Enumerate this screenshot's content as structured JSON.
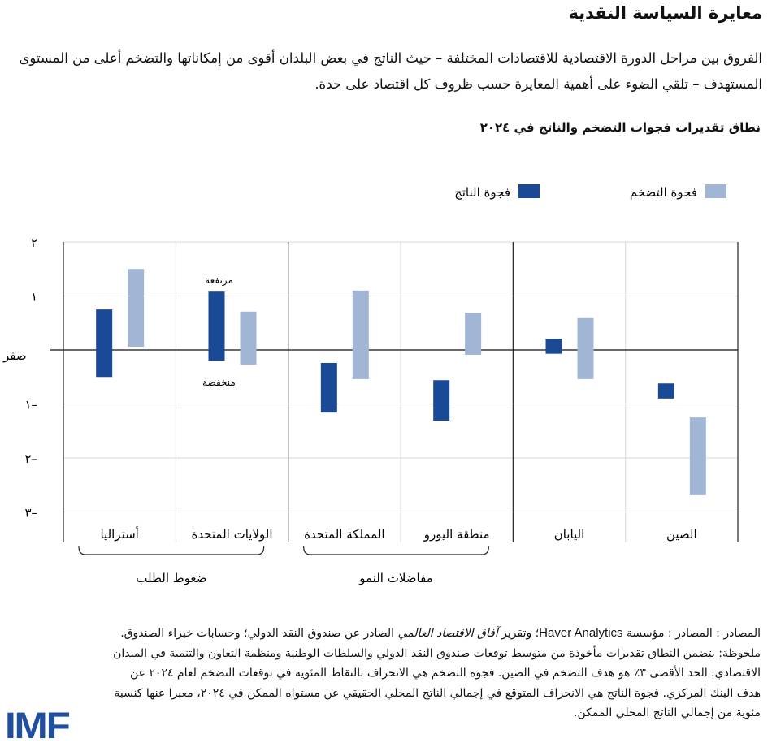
{
  "header": {
    "title": "معايرة السياسة النقدية",
    "subtitle": "الفروق بين مراحل الدورة الاقتصادية للاقتصادات المختلفة – حيث الناتج في بعض البلدان أقوى من إمكاناتها والتضخم أعلى من المستوى المستهدف – تلقي الضوء على أهمية المعايرة حسب ظروف كل اقتصاد على حدة."
  },
  "chart_data": {
    "type": "range-bar",
    "title": "نطاق تقديرات فجوات التضخم والناتج في ٢٠٢٤",
    "ylim": [
      -3,
      2
    ],
    "yticks": [
      {
        "value": 2,
        "label": "٢"
      },
      {
        "value": 1,
        "label": "١"
      },
      {
        "value": 0,
        "label": "صفر"
      },
      {
        "value": -1,
        "label": "١–"
      },
      {
        "value": -2,
        "label": "٢–"
      },
      {
        "value": -3,
        "label": "٣–"
      }
    ],
    "grid": true,
    "legend_position": "top",
    "categories": [
      "أستراليا",
      "الولايات المتحدة",
      "المملكة المتحدة",
      "منطقة اليورو",
      "اليابان",
      "الصين"
    ],
    "series": [
      {
        "name": "فجوة الناتج",
        "color": "#1a4a96",
        "ranges": [
          [
            -0.5,
            0.75
          ],
          [
            -0.2,
            1.08
          ],
          [
            -1.16,
            -0.24
          ],
          [
            -1.31,
            -0.56
          ],
          [
            -0.07,
            0.21
          ],
          [
            -0.9,
            -0.62
          ]
        ]
      },
      {
        "name": "فجوة التضخم",
        "color": "#a1b6d4",
        "ranges": [
          [
            0.06,
            1.5
          ],
          [
            -0.27,
            0.71
          ],
          [
            -0.54,
            1.1
          ],
          [
            -0.09,
            0.69
          ],
          [
            -0.54,
            0.59
          ],
          [
            -2.69,
            -1.25
          ]
        ]
      }
    ],
    "annotations": {
      "high": "مرتفعة",
      "low": "منخفضة"
    },
    "groups": [
      {
        "label": "ضغوط الطلب",
        "categories": [
          0,
          1
        ]
      },
      {
        "label": "مفاضلات النمو",
        "categories": [
          2,
          3
        ]
      }
    ]
  },
  "footer": {
    "sources_prefix": "المصادر : المصادر : مؤسسة ",
    "sources_haver": "Haver Analytics",
    "sources_mid": "؛ وتقرير ",
    "sources_weo": "آفاق الاقتصاد العالمي",
    "sources_suffix": " الصادر عن صندوق النقد الدولي؛ وحسابات خبراء الصندوق.",
    "note": "ملحوظة: يتضمن النطاق تقديرات مأخوذة من متوسط توقعات صندوق النقد الدولي والسلطات الوطنية ومنظمة التعاون والتنمية في الميدان الاقتصادي. الحد الأقصى ٣٪ هو هدف التضخم في الصين. فجوة التضخم هي الانحراف بالنقاط المئوية في توقعات التضخم لعام ٢٠٢٤ عن هدف البنك المركزي. فجوة الناتج هي الانحراف المتوقع في إجمالي الناتج المحلي الحقيقي عن مستواه الممكن في ٢٠٢٤، معبرا عنها كنسبة مئوية من إجمالي الناتج المحلي الممكن."
  },
  "logo": "IMF"
}
